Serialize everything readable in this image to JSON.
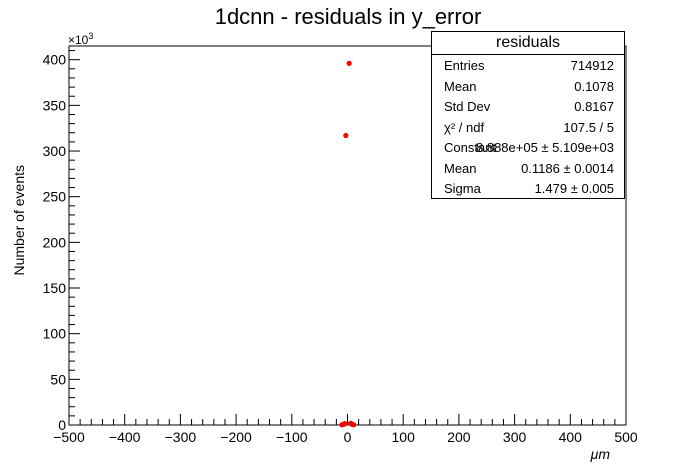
{
  "chart_data": {
    "type": "scatter",
    "title": "1dcnn - residuals in y_error",
    "xlabel": "μm",
    "ylabel": "Number of events",
    "y_multiplier": "×10",
    "y_multiplier_exp": "3",
    "xlim": [
      -500,
      500
    ],
    "ylim": [
      0,
      415
    ],
    "x_ticks": [
      -500,
      -400,
      -300,
      -200,
      -100,
      0,
      100,
      200,
      300,
      400,
      500
    ],
    "y_ticks": [
      0,
      50,
      100,
      150,
      200,
      250,
      300,
      350,
      400
    ],
    "x_tick_labels": [
      "−500",
      "−400",
      "−300",
      "−200",
      "−100",
      "0",
      "100",
      "200",
      "300",
      "400",
      "500"
    ],
    "y_tick_labels": [
      "0",
      "50",
      "100",
      "150",
      "200",
      "250",
      "300",
      "350",
      "400"
    ],
    "series": [
      {
        "color": "#ff0000",
        "points": [
          {
            "x": -10,
            "y": 0.3
          },
          {
            "x": -7,
            "y": 0.8
          },
          {
            "x": -5,
            "y": 1.5
          },
          {
            "x": -3,
            "y": 317
          },
          {
            "x": 3,
            "y": 396
          },
          {
            "x": 6,
            "y": 2
          },
          {
            "x": 8,
            "y": 0.8
          },
          {
            "x": 11,
            "y": 0.3
          }
        ]
      }
    ],
    "fit_line": [
      {
        "x": -12,
        "y": 0.2
      },
      {
        "x": -6,
        "y": 1.2
      },
      {
        "x": -2,
        "y": 2.2
      },
      {
        "x": 0,
        "y": 2.6
      },
      {
        "x": 2,
        "y": 2.3
      },
      {
        "x": 6,
        "y": 1.3
      },
      {
        "x": 12,
        "y": 0.2
      }
    ],
    "fit_color": "#000000",
    "stats_box": {
      "title": "residuals",
      "rows": [
        {
          "key": "Entries",
          "value": "714912"
        },
        {
          "key": "Mean",
          "value": "0.1078"
        },
        {
          "key": "Std Dev",
          "value": "0.8167"
        },
        {
          "key": "χ² / ndf",
          "value": "107.5 / 5"
        },
        {
          "key": "Constant",
          "value": "8.888e+05 ± 5.109e+03"
        },
        {
          "key": "Mean",
          "value": "0.1186 ± 0.0014"
        },
        {
          "key": "Sigma",
          "value": "1.479 ± 0.005"
        }
      ]
    }
  }
}
